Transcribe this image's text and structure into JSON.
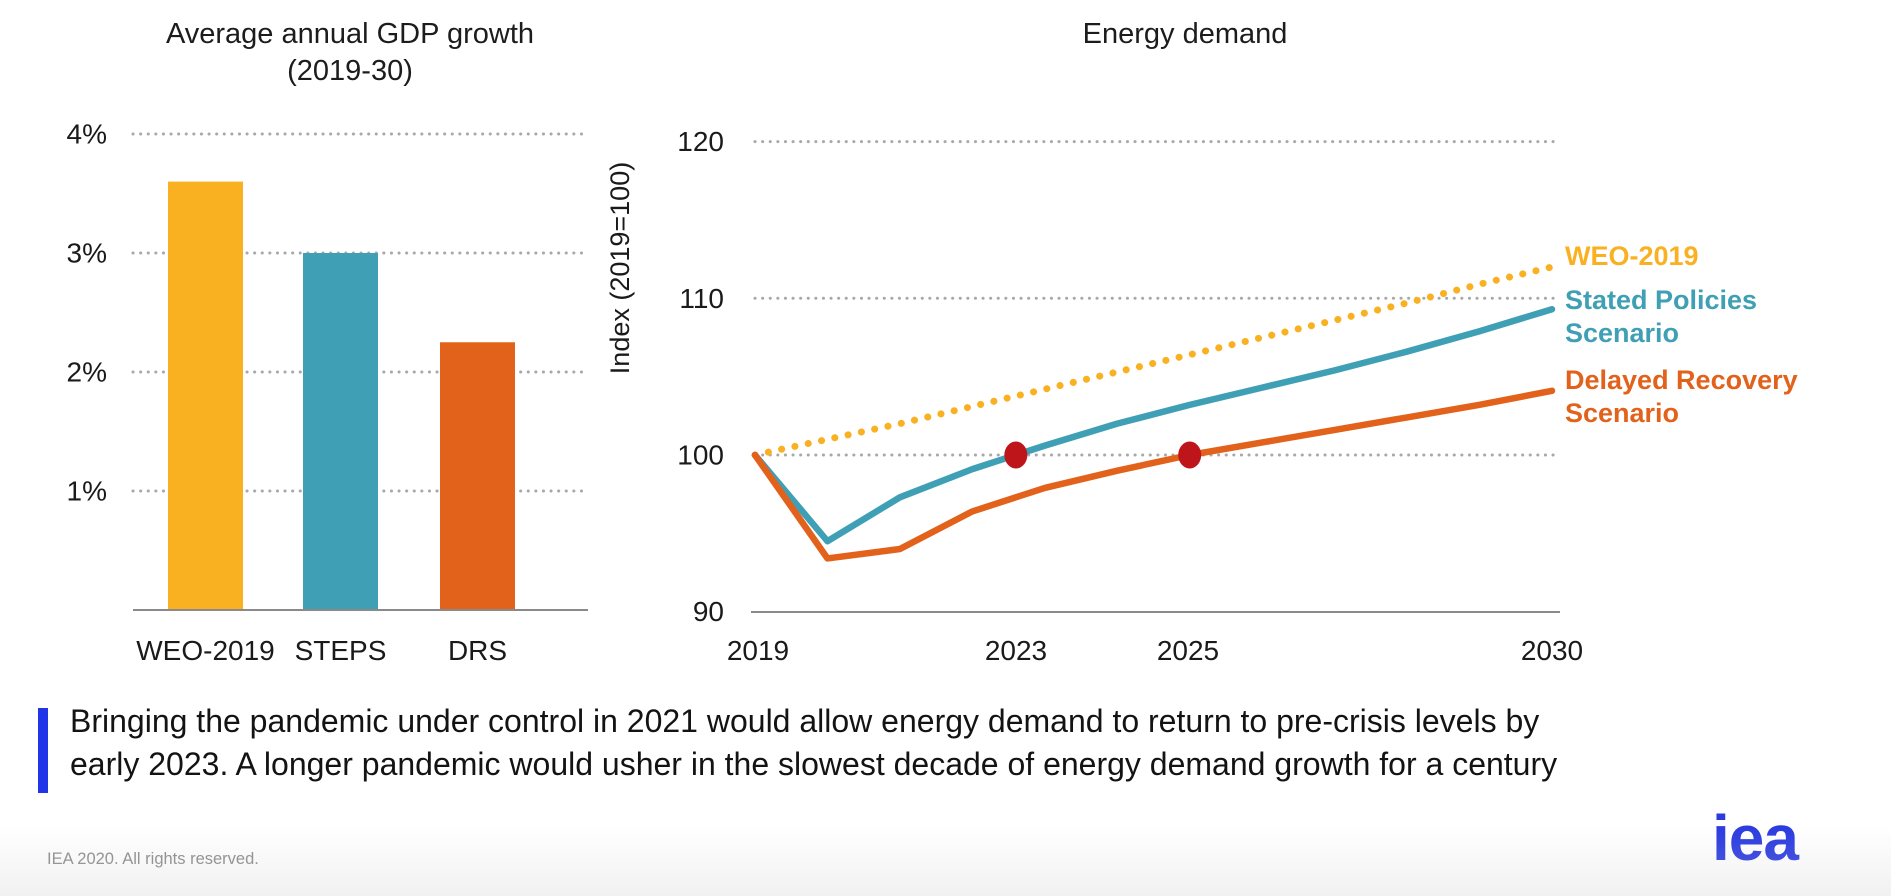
{
  "slide": {
    "caption": {
      "line1": "Bringing the pandemic under control in 2021 would allow energy demand to return to pre-crisis levels by",
      "line2": "early 2023. A longer pandemic would usher in the slowest decade of energy demand growth for a century",
      "accent_color": "#2135E8"
    },
    "footer": {
      "copyright": "IEA 2020. All rights reserved.",
      "logo_text": "iea",
      "logo_color": "#2B3BE0"
    }
  },
  "chart_data": [
    {
      "type": "bar",
      "title": "Average annual GDP growth",
      "subtitle": "(2019-30)",
      "categories": [
        "WEO-2019",
        "STEPS",
        "DRS"
      ],
      "values": [
        3.6,
        3.0,
        2.25
      ],
      "bar_colors": [
        "#F9B122",
        "#3FA0B5",
        "#E2621C"
      ],
      "ylabel": "",
      "xlabel": "",
      "ylim": [
        0,
        4
      ],
      "yticks": [
        1,
        2,
        3,
        4
      ],
      "ytick_format": "{v}%",
      "grid": "dotted-horizontal",
      "grid_color": "#a8a8a8",
      "axis_color": "#8a8a8a"
    },
    {
      "type": "line",
      "title": "Energy demand",
      "ylabel": "Index (2019=100)",
      "xlabel": "",
      "x": [
        2019,
        2020,
        2021,
        2022,
        2023,
        2024,
        2025,
        2026,
        2027,
        2028,
        2029,
        2030
      ],
      "xticks": [
        2019,
        2023,
        2025,
        2030
      ],
      "ylim": [
        90,
        122
      ],
      "yticks": [
        90,
        100,
        110,
        120
      ],
      "grid": "dotted-horizontal",
      "grid_color": "#a8a8a8",
      "axis_color": "#8a8a8a",
      "legend_position": "right",
      "series": [
        {
          "name": "WEO-2019",
          "color": "#F9B122",
          "style": "dotted",
          "values": [
            100,
            101.0,
            102.0,
            103.1,
            104.2,
            105.3,
            106.4,
            107.5,
            108.6,
            109.7,
            110.9,
            112.0
          ]
        },
        {
          "name": "Stated Policies Scenario",
          "color": "#3FA0B5",
          "style": "solid",
          "values": [
            100,
            94.5,
            97.3,
            99.1,
            100.6,
            102.0,
            103.2,
            104.3,
            105.4,
            106.6,
            107.9,
            109.3
          ]
        },
        {
          "name": "Delayed Recovery Scenario",
          "color": "#E2621C",
          "style": "solid",
          "values": [
            100,
            93.4,
            94.0,
            96.4,
            97.9,
            99.0,
            100.0,
            100.8,
            101.6,
            102.4,
            103.2,
            104.1
          ]
        }
      ],
      "markers": [
        {
          "x": 2022.6,
          "y": 100,
          "color": "#BE151B",
          "meaning": "STEPS returns to pre-crisis level early 2023"
        },
        {
          "x": 2025.0,
          "y": 100,
          "color": "#BE151B",
          "meaning": "DRS returns to pre-crisis level in 2025"
        }
      ]
    }
  ]
}
